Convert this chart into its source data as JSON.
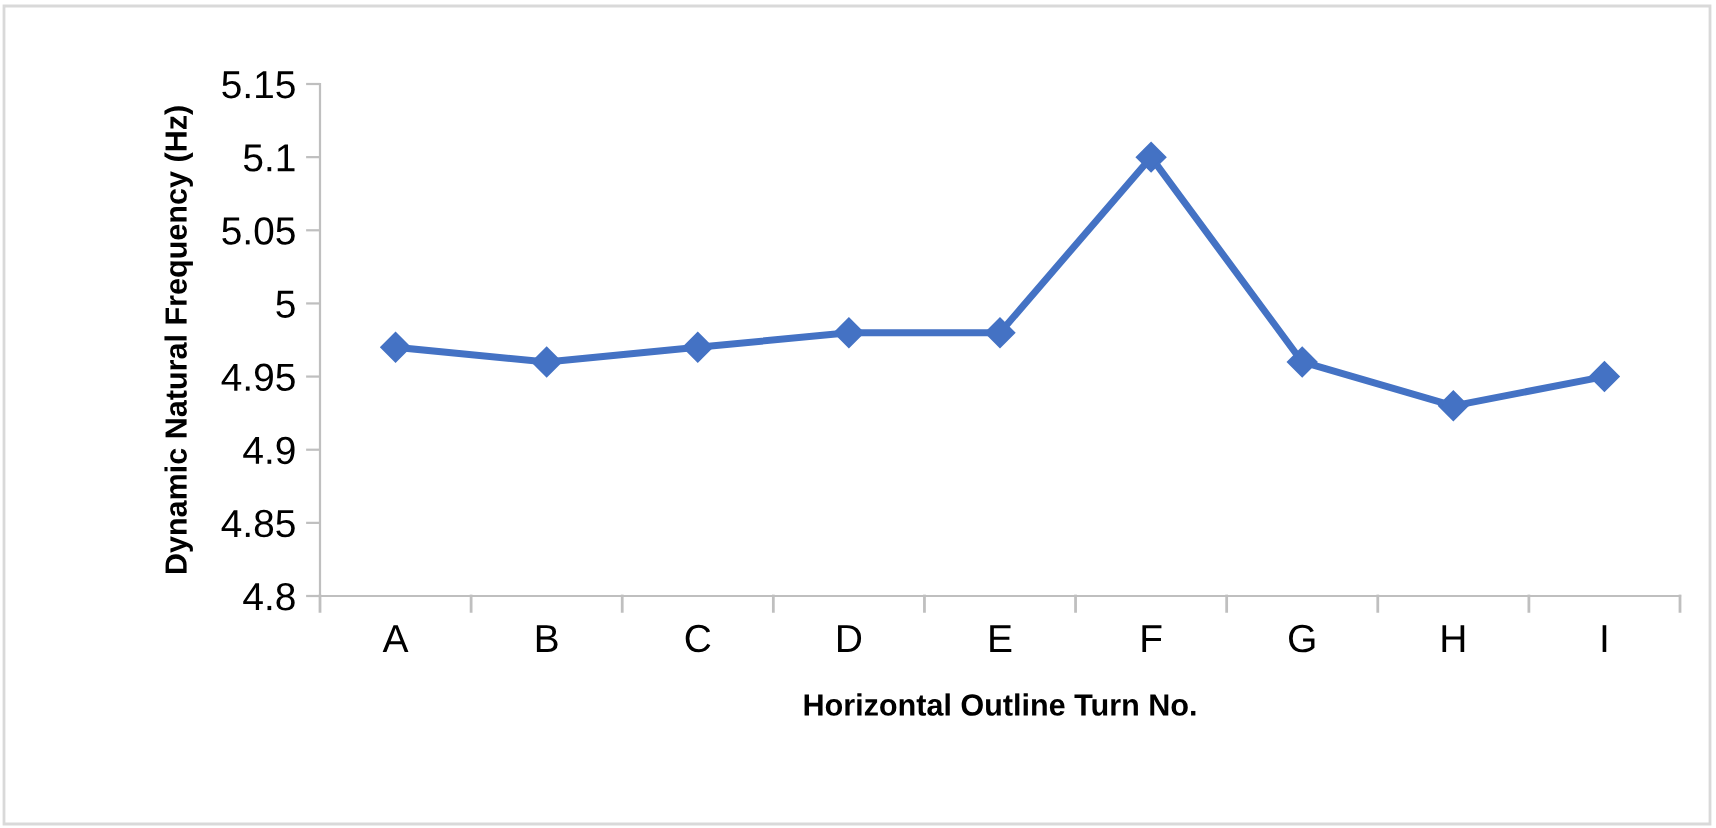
{
  "chart_data": {
    "type": "line",
    "xlabel": "Horizontal Outline Turn No.",
    "ylabel": "Dynamic Natural Frequency (Hz)",
    "categories": [
      "A",
      "B",
      "C",
      "D",
      "E",
      "F",
      "G",
      "H",
      "I"
    ],
    "series": [
      {
        "color": "#4472c4",
        "values": [
          4.97,
          4.96,
          4.97,
          4.98,
          4.98,
          5.1,
          4.96,
          4.93,
          4.95
        ]
      }
    ],
    "ylim": [
      4.8,
      5.15
    ],
    "yticks": [
      4.8,
      4.85,
      4.9,
      4.95,
      5,
      5.05,
      5.1,
      5.15
    ],
    "marker": "diamond",
    "line_style": "solid",
    "grid": false,
    "legend": false
  }
}
